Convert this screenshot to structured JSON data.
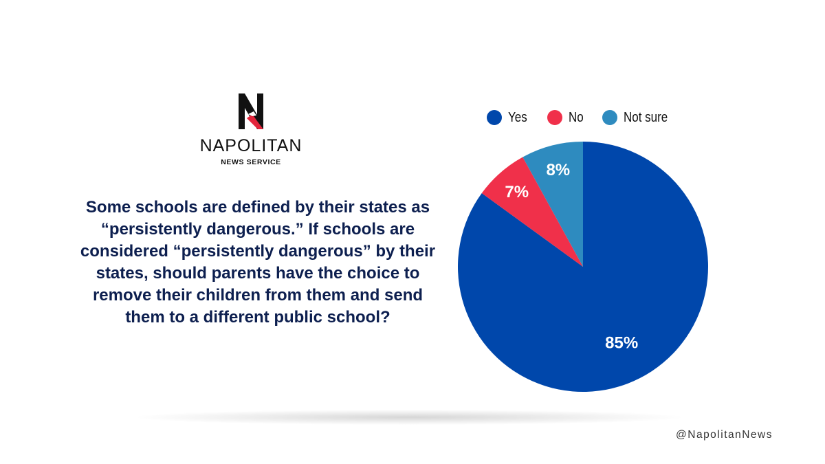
{
  "brand": {
    "logo_letter": "N",
    "name": "NAPOLITAN",
    "subtitle": "NEWS SERVICE"
  },
  "question": "Some schools are defined by their states as “persistently dangerous.” If schools are considered “persistently dangerous” by their states, should parents have the choice to remove their children from them and send them to a different public school?",
  "handle": "@NapolitanNews",
  "colors": {
    "yes": "#0047ab",
    "no": "#f0304a",
    "not_sure": "#2e8bbf",
    "question_text": "#0d1f4f"
  },
  "chart_data": {
    "type": "pie",
    "legend_position": "top",
    "slices": [
      {
        "label": "Yes",
        "value": 85,
        "display": "85%",
        "color": "#0047ab"
      },
      {
        "label": "No",
        "value": 7,
        "display": "7%",
        "color": "#f0304a"
      },
      {
        "label": "Not sure",
        "value": 8,
        "display": "8%",
        "color": "#2e8bbf"
      }
    ]
  }
}
